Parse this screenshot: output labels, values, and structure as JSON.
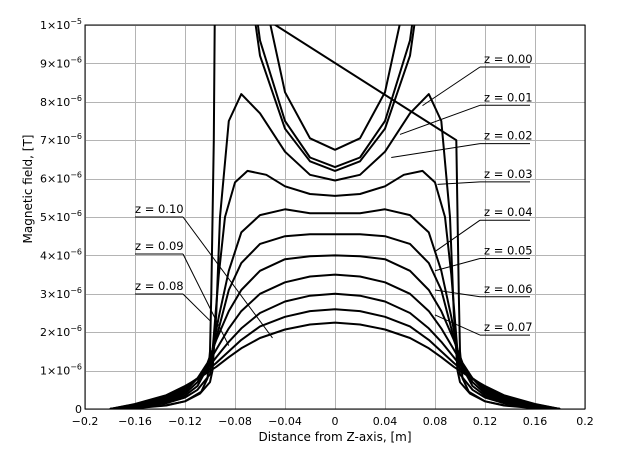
{
  "chart_data": {
    "type": "line",
    "xlabel": "Distance from Z-axis, [m]",
    "ylabel": "Magnetic field, [T]",
    "xlim": [
      -0.2,
      0.2
    ],
    "ylim": [
      0,
      1e-05
    ],
    "grid": true,
    "x_ticks": [
      {
        "value": -0.2,
        "label": "−0.2"
      },
      {
        "value": -0.16,
        "label": "−0.16"
      },
      {
        "value": -0.12,
        "label": "−0.12"
      },
      {
        "value": -0.08,
        "label": "−0.08"
      },
      {
        "value": -0.04,
        "label": "−0.04"
      },
      {
        "value": 0,
        "label": "0"
      },
      {
        "value": 0.04,
        "label": "0.04"
      },
      {
        "value": 0.08,
        "label": "0.08"
      },
      {
        "value": 0.12,
        "label": "0.12"
      },
      {
        "value": 0.16,
        "label": "0.16"
      },
      {
        "value": 0.2,
        "label": "0.2"
      }
    ],
    "y_ticks": [
      {
        "value": 0,
        "mant": "0",
        "exp": ""
      },
      {
        "value": 1e-06,
        "mant": "1×10",
        "exp": "−6"
      },
      {
        "value": 2e-06,
        "mant": "2×10",
        "exp": "−6"
      },
      {
        "value": 3e-06,
        "mant": "3×10",
        "exp": "−6"
      },
      {
        "value": 4e-06,
        "mant": "4×10",
        "exp": "−6"
      },
      {
        "value": 5e-06,
        "mant": "5×10",
        "exp": "−6"
      },
      {
        "value": 6e-06,
        "mant": "6×10",
        "exp": "−6"
      },
      {
        "value": 7e-06,
        "mant": "7×10",
        "exp": "−6"
      },
      {
        "value": 8e-06,
        "mant": "8×10",
        "exp": "−6"
      },
      {
        "value": 9e-06,
        "mant": "9×10",
        "exp": "−6"
      },
      {
        "value": 1e-05,
        "mant": "1×10",
        "exp": "−5"
      }
    ],
    "series": [
      {
        "label": "z = 0.00",
        "side": "right",
        "points": [
          [
            0,
            6.3e-06
          ],
          [
            0.02,
            6.55e-06
          ],
          [
            0.04,
            7.5e-06
          ],
          [
            0.06,
            9.6e-06
          ],
          [
            0.07,
            1.2e-05
          ]
        ]
      },
      {
        "label": "z = 0.01",
        "side": "right",
        "points": [
          [
            0,
            6.2e-06
          ],
          [
            0.02,
            6.45e-06
          ],
          [
            0.04,
            7.3e-06
          ],
          [
            0.06,
            9.2e-06
          ],
          [
            0.07,
            1.15e-05
          ]
        ]
      },
      {
        "label": "z = 0.02",
        "side": "right",
        "points": [
          [
            0,
            5.95e-06
          ],
          [
            0.02,
            6.1e-06
          ],
          [
            0.04,
            6.7e-06
          ],
          [
            0.06,
            7.7e-06
          ],
          [
            0.075,
            8.2e-06
          ],
          [
            0.085,
            7.5e-06
          ],
          [
            0.092,
            5e-06
          ],
          [
            0.095,
            2.5e-06
          ],
          [
            0.098,
            1e-06
          ],
          [
            0.1,
            7e-07
          ],
          [
            0.108,
            4e-07
          ],
          [
            0.12,
            2e-07
          ],
          [
            0.135,
            1e-07
          ],
          [
            0.16,
            3e-08
          ],
          [
            0.18,
            0
          ]
        ]
      },
      {
        "label": "z = 0.03",
        "side": "right",
        "points": [
          [
            0,
            5.55e-06
          ],
          [
            0.02,
            5.6e-06
          ],
          [
            0.04,
            5.8e-06
          ],
          [
            0.055,
            6.1e-06
          ],
          [
            0.07,
            6.2e-06
          ],
          [
            0.08,
            5.9e-06
          ],
          [
            0.088,
            5e-06
          ],
          [
            0.093,
            3.5e-06
          ],
          [
            0.098,
            1.5e-06
          ],
          [
            0.1,
            9e-07
          ],
          [
            0.11,
            5e-07
          ],
          [
            0.12,
            3e-07
          ],
          [
            0.135,
            1.5e-07
          ],
          [
            0.16,
            5e-08
          ],
          [
            0.18,
            0
          ]
        ]
      },
      {
        "label": "z = 0.04",
        "side": "right",
        "points": [
          [
            0,
            5.1e-06
          ],
          [
            0.02,
            5.1e-06
          ],
          [
            0.04,
            5.2e-06
          ],
          [
            0.06,
            5.05e-06
          ],
          [
            0.075,
            4.6e-06
          ],
          [
            0.085,
            3.6e-06
          ],
          [
            0.093,
            2.4e-06
          ],
          [
            0.1,
            1.2e-06
          ],
          [
            0.11,
            6e-07
          ],
          [
            0.12,
            3.5e-07
          ],
          [
            0.135,
            1.7e-07
          ],
          [
            0.16,
            6e-08
          ],
          [
            0.18,
            0
          ]
        ]
      },
      {
        "label": "z = 0.05",
        "side": "right",
        "points": [
          [
            0,
            4.55e-06
          ],
          [
            0.02,
            4.55e-06
          ],
          [
            0.04,
            4.5e-06
          ],
          [
            0.06,
            4.3e-06
          ],
          [
            0.075,
            3.8e-06
          ],
          [
            0.085,
            3.1e-06
          ],
          [
            0.093,
            2.1e-06
          ],
          [
            0.1,
            1.25e-06
          ],
          [
            0.11,
            7e-07
          ],
          [
            0.12,
            4e-07
          ],
          [
            0.135,
            2e-07
          ],
          [
            0.16,
            7e-08
          ],
          [
            0.18,
            0
          ]
        ]
      },
      {
        "label": "z = 0.06",
        "side": "right",
        "points": [
          [
            0,
            4e-06
          ],
          [
            0.02,
            3.98e-06
          ],
          [
            0.04,
            3.9e-06
          ],
          [
            0.06,
            3.6e-06
          ],
          [
            0.075,
            3.1e-06
          ],
          [
            0.085,
            2.55e-06
          ],
          [
            0.095,
            1.8e-06
          ],
          [
            0.102,
            1.2e-06
          ],
          [
            0.11,
            8e-07
          ],
          [
            0.12,
            4.5e-07
          ],
          [
            0.135,
            2.3e-07
          ],
          [
            0.16,
            8e-08
          ],
          [
            0.18,
            0
          ]
        ]
      },
      {
        "label": "z = 0.07",
        "side": "right",
        "points": [
          [
            0,
            3.5e-06
          ],
          [
            0.02,
            3.45e-06
          ],
          [
            0.04,
            3.3e-06
          ],
          [
            0.06,
            3e-06
          ],
          [
            0.075,
            2.55e-06
          ],
          [
            0.085,
            2.1e-06
          ],
          [
            0.095,
            1.55e-06
          ],
          [
            0.103,
            1.1e-06
          ],
          [
            0.11,
            8e-07
          ],
          [
            0.12,
            5e-07
          ],
          [
            0.135,
            2.6e-07
          ],
          [
            0.16,
            9e-08
          ],
          [
            0.18,
            0
          ]
        ]
      },
      {
        "label": "z = 0.08",
        "side": "left",
        "points": [
          [
            0,
            3e-06
          ],
          [
            0.02,
            2.95e-06
          ],
          [
            0.04,
            2.8e-06
          ],
          [
            0.06,
            2.5e-06
          ],
          [
            0.075,
            2.1e-06
          ],
          [
            0.085,
            1.75e-06
          ],
          [
            0.095,
            1.35e-06
          ],
          [
            0.103,
            1.02e-06
          ],
          [
            0.11,
            8e-07
          ],
          [
            0.12,
            5.5e-07
          ],
          [
            0.135,
            3e-07
          ],
          [
            0.16,
            1e-07
          ],
          [
            0.18,
            0
          ]
        ]
      },
      {
        "label": "z = 0.09",
        "side": "left",
        "points": [
          [
            0,
            2.6e-06
          ],
          [
            0.02,
            2.55e-06
          ],
          [
            0.04,
            2.4e-06
          ],
          [
            0.06,
            2.15e-06
          ],
          [
            0.075,
            1.8e-06
          ],
          [
            0.085,
            1.5e-06
          ],
          [
            0.095,
            1.2e-06
          ],
          [
            0.103,
            9.8e-07
          ],
          [
            0.11,
            8e-07
          ],
          [
            0.12,
            5.8e-07
          ],
          [
            0.135,
            3.3e-07
          ],
          [
            0.16,
            1.2e-07
          ],
          [
            0.18,
            0
          ]
        ]
      },
      {
        "label": "z = 0.10",
        "side": "left",
        "points": [
          [
            0,
            2.25e-06
          ],
          [
            0.02,
            2.2e-06
          ],
          [
            0.04,
            2.07e-06
          ],
          [
            0.06,
            1.85e-06
          ],
          [
            0.075,
            1.58e-06
          ],
          [
            0.085,
            1.35e-06
          ],
          [
            0.095,
            1.1e-06
          ],
          [
            0.103,
            9.3e-07
          ],
          [
            0.11,
            7.8e-07
          ],
          [
            0.12,
            6e-07
          ],
          [
            0.135,
            3.6e-07
          ],
          [
            0.16,
            1.3e-07
          ],
          [
            0.18,
            0
          ]
        ]
      },
      {
        "label": "",
        "side": "right",
        "points": [
          [
            0,
            6.75e-06
          ],
          [
            0.02,
            7.05e-06
          ],
          [
            0.04,
            8.25e-06
          ],
          [
            0.055,
            1.05e-05
          ]
        ]
      },
      {
        "label": "",
        "side": "right",
        "points": [
          [
            0.096,
            1.1e-05
          ],
          [
            0.097,
            7e-06
          ],
          [
            0.099,
            3e-06
          ],
          [
            0.1,
            1.5e-06
          ],
          [
            0.102,
            8e-07
          ],
          [
            0.107,
            4.5e-07
          ],
          [
            0.12,
            2e-07
          ],
          [
            0.135,
            9e-08
          ],
          [
            0.16,
            2e-08
          ],
          [
            0.18,
            0
          ]
        ]
      }
    ],
    "annotations": [
      {
        "series": 0,
        "text": "z = 0.00",
        "anchor": [
          0.07,
          7.9e-06
        ],
        "side": "right"
      },
      {
        "series": 1,
        "text": "z = 0.01",
        "anchor": [
          0.052,
          7.15e-06
        ],
        "side": "right"
      },
      {
        "series": 2,
        "text": "z = 0.02",
        "anchor": [
          0.045,
          6.55e-06
        ],
        "side": "right"
      },
      {
        "series": 3,
        "text": "z = 0.03",
        "anchor": [
          0.082,
          5.85e-06
        ],
        "side": "right"
      },
      {
        "series": 4,
        "text": "z = 0.04",
        "anchor": [
          0.08,
          4.1e-06
        ],
        "side": "right"
      },
      {
        "series": 5,
        "text": "z = 0.05",
        "anchor": [
          0.08,
          3.6e-06
        ],
        "side": "right"
      },
      {
        "series": 6,
        "text": "z = 0.06",
        "anchor": [
          0.08,
          3.1e-06
        ],
        "side": "right"
      },
      {
        "series": 7,
        "text": "z = 0.07",
        "anchor": [
          0.08,
          2.45e-06
        ],
        "side": "right"
      },
      {
        "series": 8,
        "text": "z = 0.08",
        "anchor": [
          -0.1,
          2.3e-06
        ],
        "side": "left"
      },
      {
        "series": 9,
        "text": "z = 0.09",
        "anchor": [
          -0.085,
          1.65e-06
        ],
        "side": "left"
      },
      {
        "series": 10,
        "text": "z = 0.10",
        "anchor": [
          -0.05,
          1.85e-06
        ],
        "side": "left"
      }
    ]
  }
}
